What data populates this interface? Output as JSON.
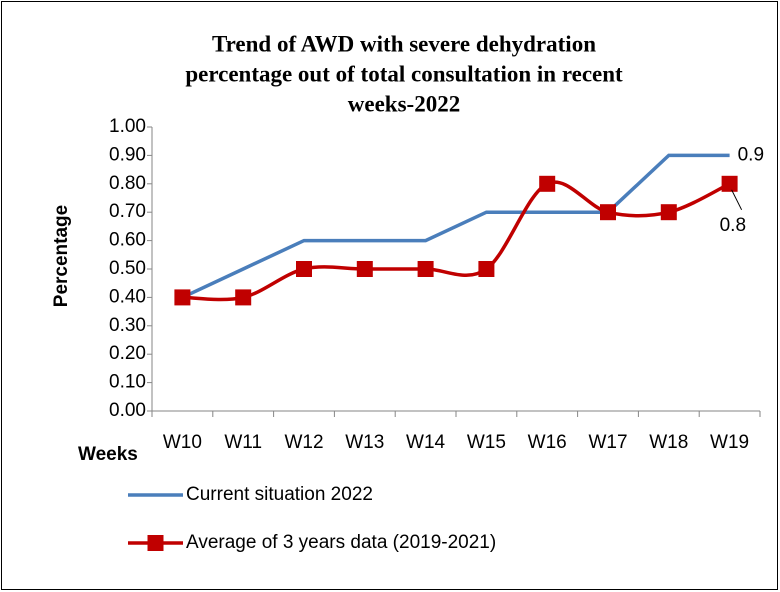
{
  "chart_data": {
    "type": "line",
    "title": [
      "Trend of AWD with severe dehydration",
      "percentage out of total consultation in recent",
      "weeks-2022"
    ],
    "x_label": "Weeks",
    "y_label": "Percentage",
    "categories": [
      "W10",
      "W11",
      "W12",
      "W13",
      "W14",
      "W15",
      "W16",
      "W17",
      "W18",
      "W19"
    ],
    "series": [
      {
        "name": "Current situation 2022",
        "color": "#4a7ebb",
        "marker": "none",
        "smooth": false,
        "values": [
          0.4,
          0.5,
          0.6,
          0.6,
          0.6,
          0.7,
          0.7,
          0.7,
          0.9,
          0.9
        ],
        "value_labels": [
          null,
          null,
          null,
          null,
          null,
          null,
          null,
          null,
          null,
          "0.9"
        ]
      },
      {
        "name": "Average of 3 years data (2019-2021)",
        "color": "#c00000",
        "marker": "square",
        "smooth": true,
        "values": [
          0.4,
          0.4,
          0.5,
          0.5,
          0.5,
          0.5,
          0.8,
          0.7,
          0.7,
          0.8
        ],
        "value_labels": [
          null,
          null,
          null,
          null,
          null,
          null,
          null,
          null,
          null,
          "0.8"
        ]
      }
    ],
    "ylim": [
      0,
      1
    ],
    "yticks": [
      {
        "value": 0,
        "label": "0.00"
      },
      {
        "value": 0.1,
        "label": "0.10"
      },
      {
        "value": 0.2,
        "label": "0.20"
      },
      {
        "value": 0.3,
        "label": "0.30"
      },
      {
        "value": 0.4,
        "label": "0.40"
      },
      {
        "value": 0.5,
        "label": "0.50"
      },
      {
        "value": 0.6,
        "label": "0.60"
      },
      {
        "value": 0.7,
        "label": "0.70"
      },
      {
        "value": 0.8,
        "label": "0.80"
      },
      {
        "value": 0.9,
        "label": "0.90"
      },
      {
        "value": 1,
        "label": "1.00"
      }
    ],
    "grid": false,
    "legend": "bottom"
  }
}
